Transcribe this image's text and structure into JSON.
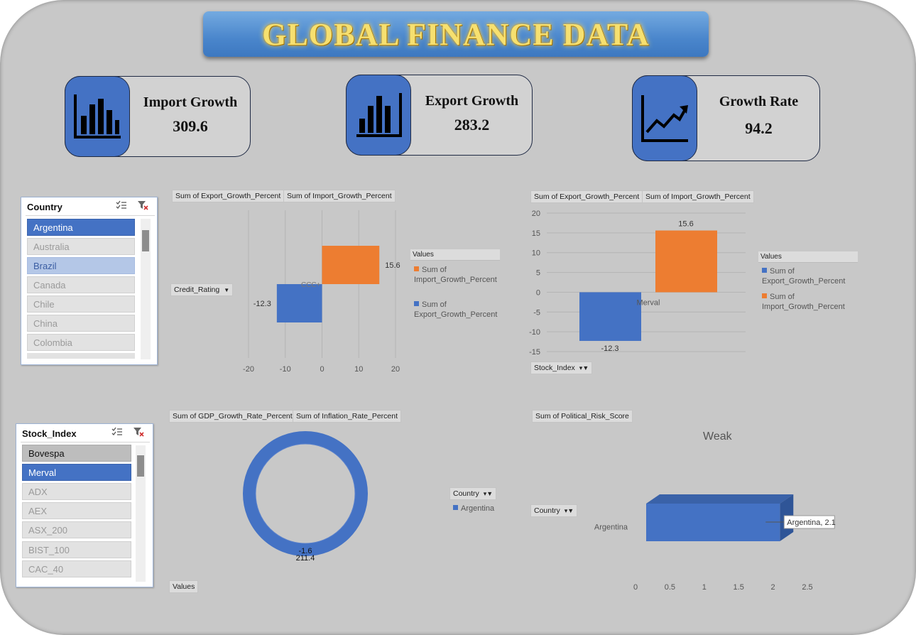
{
  "title": "GLOBAL FINANCE DATA",
  "colors": {
    "blue": "#4472c4",
    "orange": "#ed7d31",
    "background": "#c8c8c8"
  },
  "kpis": [
    {
      "label": "Import Growth",
      "value": "309.6",
      "icon": "bar-chart-icon"
    },
    {
      "label": "Export Growth",
      "value": "283.2",
      "icon": "bar-chart-icon"
    },
    {
      "label": "Growth Rate",
      "value": "94.2",
      "icon": "trend-line-icon"
    }
  ],
  "country_slicer": {
    "header": "Country",
    "items": [
      {
        "label": "Argentina",
        "state": "selected"
      },
      {
        "label": "Australia",
        "state": "none"
      },
      {
        "label": "Brazil",
        "state": "partial"
      },
      {
        "label": "Canada",
        "state": "none"
      },
      {
        "label": "Chile",
        "state": "none"
      },
      {
        "label": "China",
        "state": "none"
      },
      {
        "label": "Colombia",
        "state": "none"
      }
    ]
  },
  "stock_slicer": {
    "header": "Stock_Index",
    "items": [
      {
        "label": "Bovespa",
        "state": "hovered"
      },
      {
        "label": "Merval",
        "state": "selected"
      },
      {
        "label": "ADX",
        "state": "none"
      },
      {
        "label": "AEX",
        "state": "none"
      },
      {
        "label": "ASX_200",
        "state": "none"
      },
      {
        "label": "BIST_100",
        "state": "none"
      },
      {
        "label": "CAC_40",
        "state": "none"
      }
    ]
  },
  "chart1": {
    "fields": [
      "Sum of Export_Growth_Percent",
      "Sum of Import_Growth_Percent"
    ],
    "axis_button": "Credit_Rating",
    "legend_title": "Values",
    "legend": [
      "Sum of Import_Growth_Percent",
      "Sum of Export_Growth_Percent"
    ]
  },
  "chart2": {
    "fields": [
      "Sum of Export_Growth_Percent",
      "Sum of Import_Growth_Percent"
    ],
    "axis_button": "Stock_Index",
    "legend_title": "Values",
    "legend": [
      "Sum of Export_Growth_Percent",
      "Sum of Import_Growth_Percent"
    ]
  },
  "chart3": {
    "fields": [
      "Sum of GDP_Growth_Rate_Percent",
      "Sum of Inflation_Rate_Percent"
    ],
    "legend_button": "Country",
    "legend": [
      "Argentina"
    ],
    "values_button": "Values"
  },
  "chart4": {
    "fields": [
      "Sum of Political_Risk_Score"
    ],
    "title": "Weak",
    "axis_button": "Country",
    "data_label": "Argentina, 2.1"
  },
  "chart_data": [
    {
      "type": "bar",
      "orientation": "horizontal",
      "categories": [
        "CCC+"
      ],
      "series": [
        {
          "name": "Sum of Export_Growth_Percent",
          "values": [
            -12.3
          ]
        },
        {
          "name": "Sum of Import_Growth_Percent",
          "values": [
            15.6
          ]
        }
      ],
      "xlim": [
        -20,
        20
      ],
      "ticks": [
        "-20",
        "-10",
        "0",
        "10",
        "20"
      ],
      "value_labels": [
        "-12.3",
        "15.6"
      ],
      "grid": true,
      "legend": "right"
    },
    {
      "type": "bar",
      "categories": [
        "Merval"
      ],
      "series": [
        {
          "name": "Sum of Export_Growth_Percent",
          "values": [
            -12.3
          ]
        },
        {
          "name": "Sum of Import_Growth_Percent",
          "values": [
            15.6
          ]
        }
      ],
      "ylim": [
        -15,
        20
      ],
      "ticks": [
        "20",
        "15",
        "10",
        "5",
        "0",
        "-5",
        "-10",
        "-15"
      ],
      "value_labels": [
        "-12.3",
        "15.6"
      ],
      "grid": true,
      "legend": "right"
    },
    {
      "type": "pie",
      "style": "doughnut",
      "categories": [
        "Argentina"
      ],
      "series": [
        {
          "name": "Sum of GDP_Growth_Rate_Percent",
          "values": [
            -1.6
          ]
        },
        {
          "name": "Sum of Inflation_Rate_Percent",
          "values": [
            211.4
          ]
        }
      ],
      "value_labels": [
        "-1.6",
        "211.4"
      ],
      "legend": "right"
    },
    {
      "type": "bar",
      "orientation": "horizontal",
      "title": "Weak",
      "categories": [
        "Argentina"
      ],
      "series": [
        {
          "name": "Sum of Political_Risk_Score",
          "values": [
            2.1
          ]
        }
      ],
      "xlim": [
        0,
        2.5
      ],
      "ticks": [
        "0",
        "0.5",
        "1",
        "1.5",
        "2",
        "2.5"
      ],
      "value_labels": [
        "Argentina, 2.1"
      ],
      "legend": "none"
    }
  ]
}
